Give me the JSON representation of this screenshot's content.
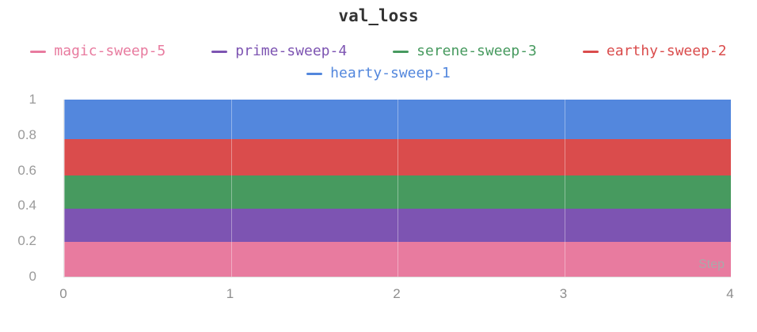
{
  "chart_data": {
    "type": "area",
    "title": "val_loss",
    "xlabel": "Step",
    "ylabel": "",
    "x": [
      0,
      1,
      2,
      3,
      4
    ],
    "xlim": [
      0,
      4
    ],
    "ylim": [
      0,
      1
    ],
    "yticks": [
      0,
      0.2,
      0.4,
      0.6,
      0.8,
      1
    ],
    "grid": "vertical",
    "legend_position": "top",
    "series": [
      {
        "name": "magic-sweep-5",
        "color": "#E87B9F",
        "band": [
          0,
          0.196
        ]
      },
      {
        "name": "prime-sweep-4",
        "color": "#7D54B2",
        "band": [
          0.196,
          0.382
        ]
      },
      {
        "name": "serene-sweep-3",
        "color": "#479A5F",
        "band": [
          0.382,
          0.573
        ]
      },
      {
        "name": "earthy-sweep-2",
        "color": "#DA4C4C",
        "band": [
          0.573,
          0.775
        ]
      },
      {
        "name": "hearty-sweep-1",
        "color": "#5387DD",
        "band": [
          0.775,
          1.0
        ]
      }
    ]
  }
}
